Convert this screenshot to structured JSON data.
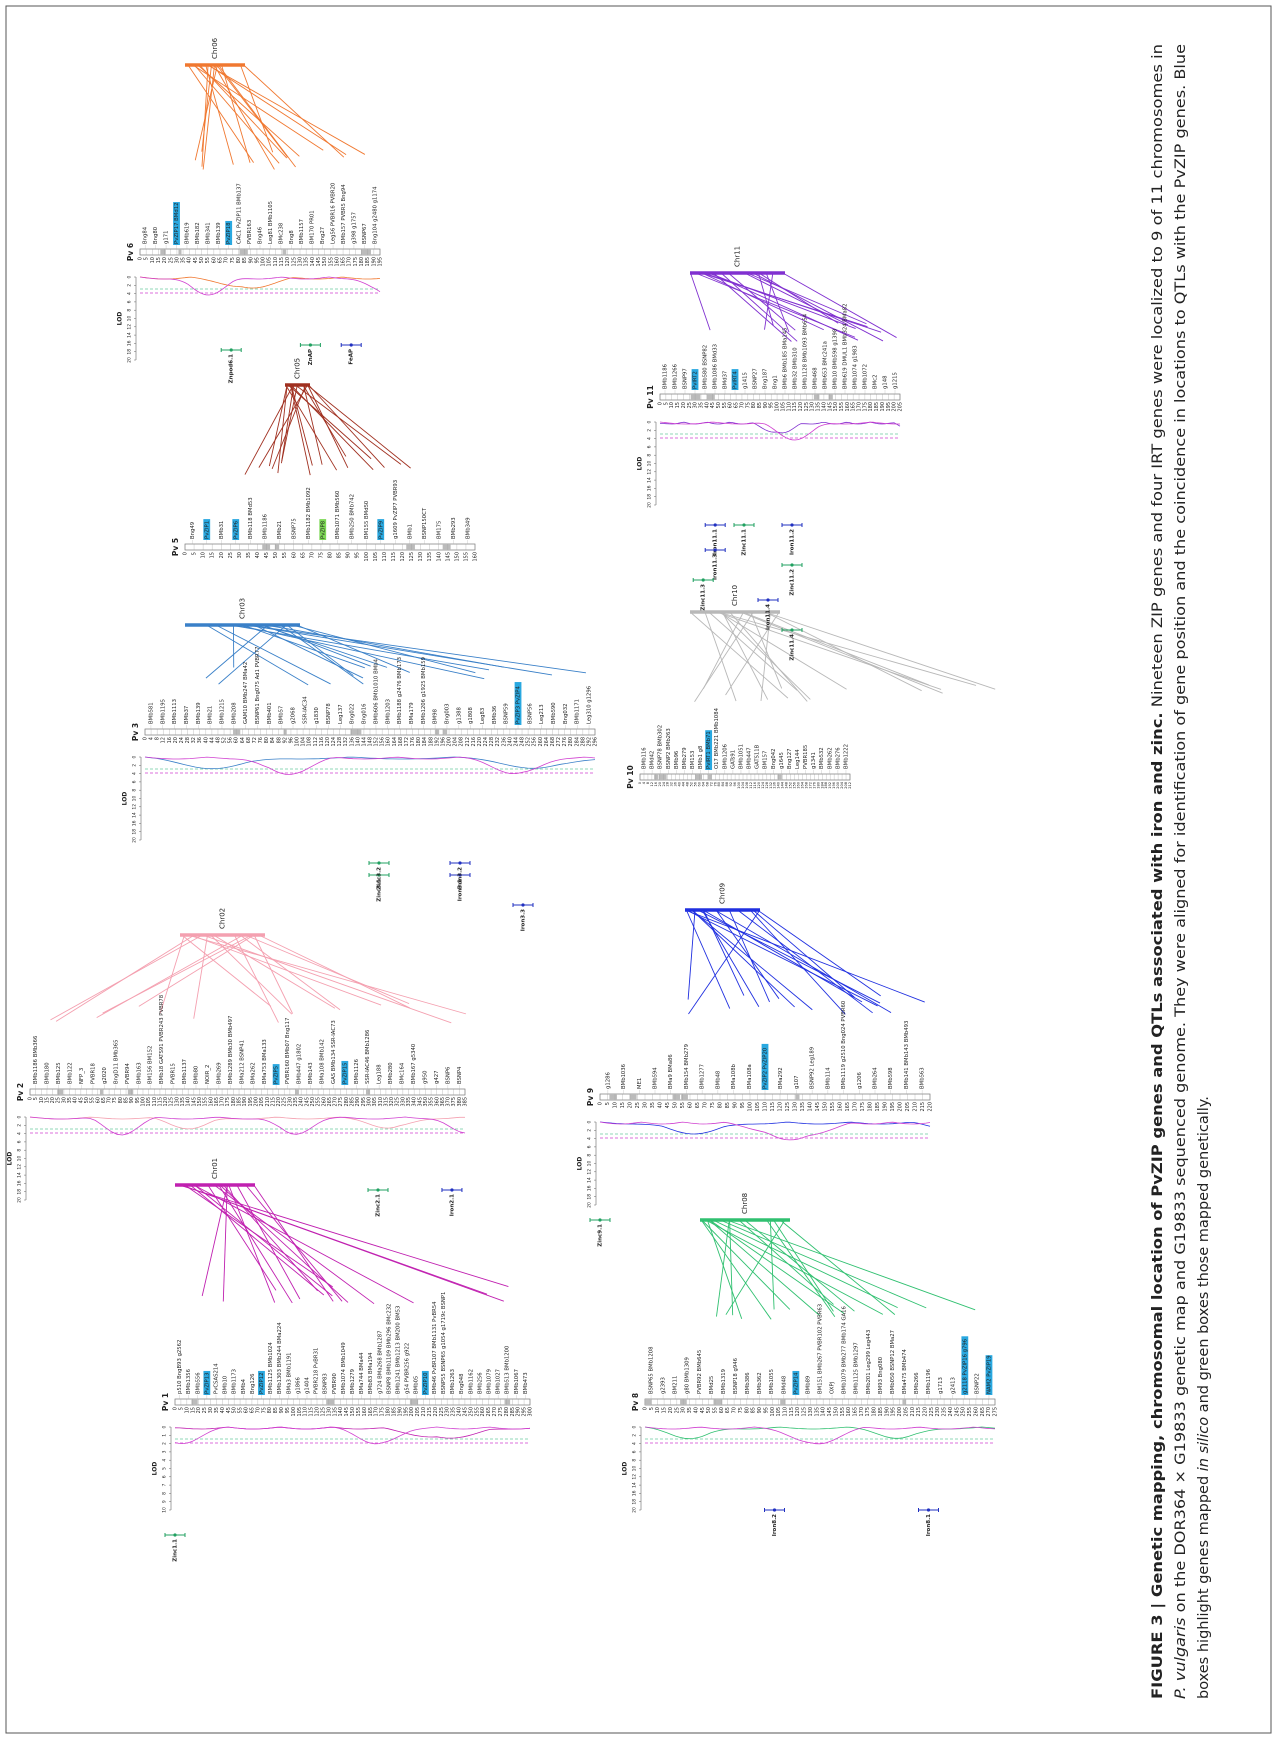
{
  "lod_label": "LOD",
  "panels": [
    {
      "name": "Pv 1",
      "synteny": "Chr01",
      "color": "#c020b0",
      "lod_ticks": [
        10,
        9,
        8,
        7,
        6,
        5,
        4,
        3,
        2,
        1,
        0
      ],
      "ticks": [
        0,
        5,
        10,
        15,
        20,
        25,
        30,
        35,
        40,
        45,
        50,
        55,
        60,
        65,
        70,
        75,
        80,
        85,
        90,
        95,
        100,
        105,
        110,
        115,
        120,
        125,
        130,
        135,
        140,
        145,
        150,
        155,
        160,
        165,
        170,
        175,
        180,
        185,
        190,
        195,
        200,
        205,
        210,
        215,
        220,
        225,
        230,
        235,
        240,
        245,
        250,
        255,
        260,
        265,
        270,
        275,
        280,
        285,
        290,
        295,
        300
      ],
      "genes": [
        "p510 BngB93 g2562",
        "BMb1356",
        "BMb556",
        {
          "label": "PvZIP13",
          "box": "#29a8e0"
        },
        "PvCSAS214",
        "BMb10",
        "BMb1173",
        "BMb4",
        "Bng126",
        {
          "label": "PvZIP12",
          "box": "#29a8e0"
        },
        "BMb1125 BMb1024",
        "BMb1303 BMb244 BMa224",
        "BMa3 BMb1191",
        "g1866",
        "g1404",
        "PVBR218 PvBR31",
        "BSNP83",
        "PVBR90",
        "BMb1074 BMb1049",
        "BMb1279",
        "BMa744 BMa44",
        "BMb83 BMa194",
        "g724 BMa268 BMb1287",
        "BSNP8 BMb1109 BMb296 BMc232",
        "BMb1241 BMb1213 BM200 BM53",
        "g54 PVBR256 g922",
        "BMb05",
        {
          "label": "PvZIP10",
          "box": "#29a8e0"
        },
        "BMb46 PvBR107 BMb1131 PvBR54",
        "BSNP55 BSNP65 g1054 g1719c BSNP1",
        "BMb1263",
        "Bng048",
        "BMb1162",
        "BMb256",
        "BMb1079",
        "BMb1027",
        "BMb513 BMb1200",
        "BMb1067",
        "BMb473"
      ],
      "qtls": [
        "Zinc1.1"
      ]
    },
    {
      "name": "Pv 2",
      "synteny": "Chr02",
      "color": "#f4a0b0",
      "lod_ticks": [
        20,
        18,
        16,
        14,
        12,
        10,
        8,
        6,
        4,
        2,
        0
      ],
      "ticks": [
        0,
        5,
        10,
        15,
        20,
        25,
        30,
        35,
        40,
        45,
        50,
        55,
        60,
        65,
        70,
        75,
        80,
        85,
        90,
        95,
        100,
        105,
        110,
        115,
        120,
        125,
        130,
        135,
        140,
        145,
        150,
        155,
        160,
        165,
        170,
        175,
        180,
        185,
        190,
        195,
        200,
        205,
        210,
        215,
        220,
        225,
        230,
        235,
        240,
        245,
        250,
        255,
        260,
        265,
        270,
        275,
        280,
        285,
        290,
        295,
        300,
        305,
        310,
        315,
        320,
        325,
        330,
        335,
        340,
        345,
        350,
        355,
        360,
        365,
        370,
        375,
        380,
        385
      ],
      "genes": [
        "BMb1186 BMb366",
        "BMb180",
        "BMb125",
        "BMb122",
        "NFP_3",
        "PVBR18",
        "g2020",
        "BngD11 BMb365",
        "PVBR94",
        "BMb163",
        "BM156 BM152",
        "BMb18 GATS91 PVBR243 PVBR78",
        "PVBR15",
        "BMb1137",
        "BMb80",
        "NOIR_2",
        "BMb269",
        "BMb1289 BMb30 BMb497",
        "BMa212 BSNP41",
        "BMa262",
        "BMa753 BMa133",
        {
          "label": "PvZIP5",
          "box": "#29a8e0"
        },
        "PVBR160 BMb07 Bng117",
        "BMb447 g1802",
        "BMb143",
        "BMa108 BMb142",
        "GAS BMb134 SSR-IAC73",
        {
          "label": "PvZIP15",
          "box": "#29a8e0"
        },
        "BMb1126",
        "SSR-IAC46 BMb1286",
        "Leg188",
        "BMb280",
        "BMc164",
        "BMb167 g5340",
        "g950",
        "g427",
        "BSNP6",
        "BSNP4"
      ],
      "qtls": [
        "Zinc2.1",
        "Iron2.1"
      ]
    },
    {
      "name": "Pv 3",
      "synteny": "Chr03",
      "color": "#3a80c8",
      "lod_ticks": [
        20,
        18,
        16,
        14,
        12,
        10,
        8,
        6,
        4,
        2,
        0
      ],
      "ticks": [
        0,
        4,
        8,
        12,
        16,
        20,
        24,
        28,
        32,
        36,
        40,
        44,
        48,
        52,
        56,
        60,
        64,
        68,
        72,
        76,
        80,
        84,
        88,
        92,
        96,
        100,
        104,
        108,
        112,
        116,
        120,
        124,
        128,
        132,
        136,
        140,
        144,
        148,
        152,
        156,
        160,
        164,
        168,
        172,
        176,
        180,
        184,
        188,
        192,
        196,
        200,
        204,
        208,
        212,
        216,
        220,
        224,
        228,
        232,
        236,
        240,
        244,
        248,
        252,
        256,
        260,
        264,
        268,
        272,
        276,
        280,
        284,
        288,
        292,
        296
      ],
      "genes": [
        "BMb581",
        "BMb1195",
        "BMb1113",
        "BMb37",
        "BMb139",
        "BMb21",
        "BMb1215",
        "BMb208",
        "GAM10 BMb247 BMa42",
        "BSNP61 Bng075 Ad1 PVBR77",
        "BMb401",
        "BMb57",
        "g2068",
        "SSR-IAC34",
        "g1830",
        "BSNP78",
        "Leg137",
        "Bng022",
        "Bng016",
        "BMb606 BMb1010 BMb4",
        "BMb1203",
        "BMb1188 g2476 BMb173",
        "BMa179",
        "BMb1206 g1925 BMb159",
        "BM98",
        "Bng003",
        "g1388",
        "g1808",
        "Leg83",
        "BMb36",
        "BSNP59",
        {
          "label": "PvZIP3 PvZIP4",
          "box": "#29a8e0"
        },
        "BSNP56",
        "Leg213",
        "BMb590",
        "Bng032",
        "BMb1171",
        "Leg310 g1296"
      ],
      "qtls": [
        "Zinc3.1",
        "Zinc3.2",
        "Iron3.1",
        "Iron3.2",
        "Iron3.3"
      ]
    },
    {
      "name": "Pv 5",
      "synteny": "Chr05",
      "color": "#a03020",
      "lod_ticks": [],
      "ticks": [
        0,
        5,
        10,
        15,
        20,
        25,
        30,
        35,
        40,
        45,
        50,
        55,
        60,
        65,
        70,
        75,
        80,
        85,
        90,
        95,
        100,
        105,
        110,
        115,
        120,
        125,
        130,
        135,
        140,
        145,
        150,
        155,
        160
      ],
      "genes": [
        "Bng49",
        {
          "label": "PvZIP1",
          "box": "#29a8e0"
        },
        "BMb31",
        {
          "label": "PvZIP6",
          "box": "#29a8e0"
        },
        "BMb118 BMd53",
        "BMb1186",
        "BMb21",
        "BSNP75",
        "BMb1182 BMb1092",
        {
          "label": "PvZIP8",
          "box": "#7ed957"
        },
        "BMb1071 BMb560",
        "BMb250 BMb742",
        "BM155 BMd50",
        {
          "label": "PvZIP9",
          "box": "#29a8e0"
        },
        "g1609 PvZIP7 PVBR93",
        "BMb1",
        "BSNP150CT",
        "BM175",
        "BMb293",
        "BMb349"
      ],
      "qtls": []
    },
    {
      "name": "Pv 6",
      "synteny": "Chr06",
      "color": "#f07830",
      "lod_ticks": [
        20,
        18,
        16,
        14,
        12,
        10,
        8,
        6,
        4,
        2,
        0
      ],
      "ticks": [
        0,
        5,
        10,
        15,
        20,
        25,
        30,
        35,
        40,
        45,
        50,
        55,
        60,
        65,
        70,
        75,
        80,
        85,
        90,
        95,
        100,
        105,
        110,
        115,
        120,
        125,
        130,
        135,
        140,
        145,
        150,
        155,
        160,
        165,
        170,
        175,
        180,
        185,
        190,
        195
      ],
      "genes": [
        "Bng84",
        "Bng80",
        "g171",
        {
          "label": "PvZIP17 BMd12",
          "box": "#29a8e0"
        },
        "BMb619",
        "BMb182",
        "BMb341",
        "BMb139",
        {
          "label": "PvZIP18",
          "box": "#29a8e0"
        },
        "CAC1 PvZIP11 BMb137",
        "PVBR163",
        "Bng46",
        "Leg81 BMb1105",
        "BMc238",
        "Bng8",
        "BMb1157",
        "BM170 PR01",
        "Bng27",
        "Leg56 PVBR16 PVBR20",
        "BMb157 PVBR5 Bng94",
        "g398 g1757",
        "BSNP67",
        "Bng104 g2480 g1174"
      ],
      "qtls": [
        "Znpod6.1",
        "ZnAP",
        "FeAP"
      ]
    },
    {
      "name": "Pv 8",
      "synteny": "Chr08",
      "color": "#30c070",
      "lod_ticks": [
        20,
        18,
        16,
        14,
        12,
        10,
        8,
        6,
        4,
        2,
        0
      ],
      "ticks": [
        0,
        5,
        10,
        15,
        20,
        25,
        30,
        35,
        40,
        45,
        50,
        55,
        60,
        65,
        70,
        75,
        80,
        85,
        90,
        95,
        100,
        105,
        110,
        115,
        120,
        125,
        130,
        135,
        140,
        145,
        150,
        155,
        160,
        165,
        170,
        175,
        180,
        185,
        190,
        195,
        200,
        205,
        210,
        215,
        220,
        225,
        230,
        235,
        240,
        245,
        250,
        255,
        260,
        265,
        270,
        275
      ],
      "genes": [
        "BSNP65 BMb1208",
        "g2393",
        "BM211",
        "g80 BMb1309",
        "PVBR92 BMb645",
        "BMd25",
        "BMb1319",
        "BSNP18 g946",
        "BMb386",
        "BMb362",
        "BMb1055",
        "BMd48",
        {
          "label": "PvZIP14",
          "box": "#29a8e0"
        },
        "BMb89",
        "BM151 BMb267 PVBR102 PVBR63",
        "OXPJ",
        "BMb1079 BMb277 BMb174 GA16",
        "BMb1125 BMb1297",
        "BMb201 Leg299 Leg443",
        "BM93 Bng080",
        "BMb050 BSNP12 BMa27",
        "BMa475 BMb474",
        "BMb266",
        "BMb1196",
        "g1713",
        "g2413",
        {
          "label": "g2118 PvZIP16 g796",
          "box": "#29a8e0"
        },
        "BSNP22",
        {
          "label": "NAM2 PvZIP19",
          "box": "#29a8e0"
        }
      ],
      "qtls": [
        "Iron8.2",
        "Iron8.1"
      ]
    },
    {
      "name": "Pv 9",
      "synteny": "Chr09",
      "color": "#2030e0",
      "lod_ticks": [
        20,
        18,
        16,
        14,
        12,
        10,
        8,
        6,
        4,
        2,
        0
      ],
      "ticks": [
        0,
        5,
        10,
        15,
        20,
        25,
        30,
        35,
        40,
        45,
        50,
        55,
        60,
        65,
        70,
        75,
        80,
        85,
        90,
        95,
        100,
        105,
        110,
        115,
        120,
        125,
        130,
        135,
        140,
        145,
        150,
        155,
        160,
        165,
        170,
        175,
        180,
        185,
        190,
        195,
        200,
        205,
        210,
        215,
        220
      ],
      "genes": [
        "g1286",
        "BMb1036",
        "ME1",
        "BMb594",
        "BMa9 BMa86",
        "BMb154 BMb279",
        "BMb1277",
        "BMb48",
        "BMa108b",
        "BMa108a",
        {
          "label": "PvZIP2 PvZIP20",
          "box": "#29a8e0"
        },
        "BMa292",
        "g107",
        "BSNP92 Leg189",
        "BMb114",
        "BMb1119 g2510 Bng024 PVBR60",
        "g1206",
        "BMb264",
        "BMb598",
        "BMb141 BMb143 BMb493",
        "BMb563"
      ],
      "qtls": [
        "Zinc9.1"
      ]
    },
    {
      "name": "Pv 10",
      "synteny": "Chr10",
      "color": "#b8b8b8",
      "lod_ticks": [],
      "ticks": [
        0,
        4,
        8,
        12,
        16,
        20,
        24,
        28,
        32,
        36,
        40,
        44,
        48,
        52,
        56,
        60,
        64,
        68,
        72,
        76,
        80,
        84,
        88,
        92,
        96,
        100,
        104,
        108,
        112,
        116,
        120,
        124,
        128,
        132,
        136,
        140,
        144,
        148,
        152,
        156,
        160,
        164,
        168,
        172,
        176,
        180,
        184,
        188,
        192,
        196,
        200,
        204,
        208,
        212
      ],
      "genes": [
        "BMb116",
        "BMd42",
        "BSNP78 BMb302",
        "BSNP2 BMb263",
        "BMb96",
        "BMb279",
        "BM153",
        "BMb1 g8",
        {
          "label": "PvIRT1 BMb71",
          "box": "#29a8e0"
        },
        "O17 BMb221 BMb1084",
        "BMb1206",
        "GATs91",
        "BMb1051",
        "BMb447",
        "GATS11B",
        "BM157",
        "Bng042",
        "g1645",
        "Bng127",
        "Leg144",
        "PVBR185",
        "g1341",
        "BMb532",
        "BMb262",
        "BMb276",
        "BMb1222"
      ],
      "qtls": []
    },
    {
      "name": "Pv 11",
      "synteny": "Chr11",
      "color": "#8030d0",
      "lod_ticks": [
        20,
        18,
        16,
        14,
        12,
        10,
        8,
        6,
        4,
        2,
        0
      ],
      "ticks": [
        0,
        5,
        10,
        15,
        20,
        25,
        30,
        35,
        40,
        45,
        50,
        55,
        60,
        65,
        70,
        75,
        80,
        85,
        90,
        95,
        100,
        105,
        110,
        115,
        120,
        125,
        130,
        135,
        140,
        145,
        150,
        155,
        160,
        165,
        170,
        175,
        180,
        185,
        190,
        195,
        200,
        205
      ],
      "genes": [
        "BMb1186",
        "BMb1266",
        "BSNP97",
        {
          "label": "PvIRT2",
          "box": "#29a8e0"
        },
        "BMb580 BSNP82",
        "BMb1086 BMd33",
        "BMd37",
        {
          "label": "PvIRT4",
          "box": "#29a8e0"
        },
        "g1415",
        "BSNP27",
        "Bng187",
        "Bng1",
        "BMb6 BMb185 BMa145",
        "BMb32 BMb310",
        "BMb1128 BMb1093 BMb654",
        "BMb468",
        "BMb653 BMc241a",
        "BMb10 BMb598 g1398",
        "BMb619 DMUL1 BMb324 BMa82",
        "BMb1074 g1983",
        "BMb1072",
        "BMc2",
        "g148",
        "g1215"
      ],
      "qtls": [
        "Iron11.1",
        "Iron11.3",
        "Zinc11.3",
        "Zinc11.1",
        "Iron11.2",
        "Zinc11.2",
        "Iron11.4",
        "Zinc11.4"
      ]
    }
  ],
  "caption": {
    "lines": [
      [
        {
          "text": "FIGURE 3 | Genetic mapping, chromosomal location of PvZIP genes and QTLs associated with iron and zinc.",
          "style": "bold"
        },
        {
          "text": " Nineteen ZIP genes and four IRT genes were localized to 9 of 11 chromosomes in",
          "style": "normal"
        }
      ],
      [
        {
          "text": "P. vulgaris",
          "style": "italic"
        },
        {
          "text": " on the DOR364 × G19833 genetic map and G19833 sequenced genome. They were aligned for identification of gene position and the coincidence in locations to QTLs with the PvZIP genes. Blue",
          "style": "normal"
        }
      ],
      [
        {
          "text": "boxes highlight genes mapped ",
          "style": "normal"
        },
        {
          "text": "in silico",
          "style": "italic"
        },
        {
          "text": " and green boxes those mapped genetically.",
          "style": "normal"
        }
      ]
    ]
  }
}
